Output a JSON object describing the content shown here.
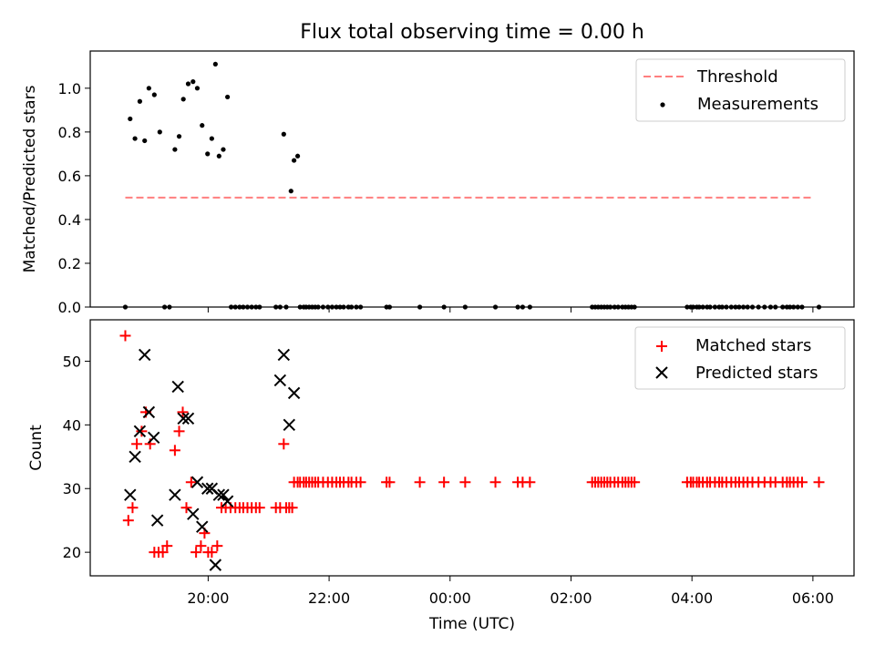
{
  "chart_data": {
    "title": "Flux total observing time = 0.00 h",
    "x_unit": "hours since 00:00 UTC",
    "xlabel": "Time (UTC)",
    "xticks": [
      {
        "value": -4,
        "label": "20:00"
      },
      {
        "value": -2,
        "label": "22:00"
      },
      {
        "value": 0,
        "label": "00:00"
      },
      {
        "value": 2,
        "label": "02:00"
      },
      {
        "value": 4,
        "label": "04:00"
      },
      {
        "value": 6,
        "label": "06:00"
      }
    ],
    "xlim": [
      -5.95,
      6.68
    ],
    "panels": [
      {
        "type": "scatter",
        "ylabel": "Matched/Predicted stars",
        "ylim": [
          0,
          1.17
        ],
        "yticks": [
          {
            "value": 0,
            "label": "0.0"
          },
          {
            "value": 0.2,
            "label": "0.2"
          },
          {
            "value": 0.4,
            "label": "0.4"
          },
          {
            "value": 0.6,
            "label": "0.6"
          },
          {
            "value": 0.8,
            "label": "0.8"
          },
          {
            "value": 1.0,
            "label": "1.0"
          }
        ],
        "legend": {
          "position": "top-right",
          "entries": [
            "Threshold",
            "Measurements"
          ]
        },
        "threshold": {
          "name": "Threshold",
          "color": "#ff7f7f",
          "style": "dashed",
          "x": [
            -5.37,
            6.02
          ],
          "y": 0.5
        },
        "measurements": {
          "name": "Measurements",
          "color": "#000000",
          "x": [
            -5.37,
            -5.29,
            -5.21,
            -5.13,
            -5.05,
            -4.98,
            -4.89,
            -4.8,
            -4.72,
            -4.64,
            -4.55,
            -4.48,
            -4.41,
            -4.33,
            -4.25,
            -4.18,
            -4.1,
            -4.01,
            -3.94,
            -3.88,
            -3.82,
            -3.75,
            -3.68,
            -3.62,
            -3.55,
            -3.48,
            -3.42,
            -3.35,
            -3.28,
            -3.21,
            -3.15,
            -2.88,
            -2.81,
            -2.75,
            -2.71,
            -2.63,
            -2.58,
            -2.52,
            -2.48,
            -2.42,
            -2.38,
            -2.33,
            -2.28,
            -2.23,
            -2.18,
            -2.1,
            -2.02,
            -1.95,
            -1.88,
            -1.82,
            -1.76,
            -1.68,
            -1.63,
            -1.55,
            -1.48,
            -1.05,
            -1.0,
            -0.5,
            -0.1,
            0.25,
            0.75,
            1.12,
            1.2,
            1.32,
            2.35,
            2.4,
            2.45,
            2.5,
            2.55,
            2.6,
            2.65,
            2.72,
            2.78,
            2.85,
            2.9,
            2.95,
            3.0,
            3.05,
            3.92,
            3.98,
            4.02,
            4.08,
            4.12,
            4.18,
            4.25,
            4.3,
            4.38,
            4.45,
            4.5,
            4.57,
            4.65,
            4.72,
            4.78,
            4.85,
            4.92,
            5.0,
            5.1,
            5.2,
            5.3,
            5.38,
            5.5,
            5.57,
            5.62,
            5.68,
            5.75,
            5.82,
            6.1
          ],
          "y": [
            0.0,
            0.86,
            0.77,
            0.94,
            0.76,
            1.0,
            0.97,
            0.8,
            0.0,
            0.0,
            0.72,
            0.78,
            0.95,
            1.02,
            1.03,
            1.0,
            0.83,
            0.7,
            0.77,
            1.11,
            0.69,
            0.72,
            0.96,
            0.0,
            0.0,
            0.0,
            0.0,
            0.0,
            0.0,
            0.0,
            0.0,
            0.0,
            0.0,
            0.79,
            0.0,
            0.53,
            0.67,
            0.69,
            0.0,
            0.0,
            0.0,
            0.0,
            0.0,
            0.0,
            0.0,
            0.0,
            0.0,
            0.0,
            0.0,
            0.0,
            0.0,
            0.0,
            0.0,
            0.0,
            0.0,
            0.0,
            0.0,
            0.0,
            0.0,
            0.0,
            0.0,
            0.0,
            0.0,
            0.0,
            0.0,
            0.0,
            0.0,
            0.0,
            0.0,
            0.0,
            0.0,
            0.0,
            0.0,
            0.0,
            0.0,
            0.0,
            0.0,
            0.0,
            0.0,
            0.0,
            0.0,
            0.0,
            0.0,
            0.0,
            0.0,
            0.0,
            0.0,
            0.0,
            0.0,
            0.0,
            0.0,
            0.0,
            0.0,
            0.0,
            0.0,
            0.0,
            0.0,
            0.0,
            0.0,
            0.0,
            0.0,
            0.0,
            0.0,
            0.0,
            0.0,
            0.0,
            0.0
          ]
        }
      },
      {
        "type": "scatter",
        "ylabel": "Count",
        "ylim": [
          16.3,
          56.5
        ],
        "yticks": [
          {
            "value": 20,
            "label": "20"
          },
          {
            "value": 30,
            "label": "30"
          },
          {
            "value": 40,
            "label": "40"
          },
          {
            "value": 50,
            "label": "50"
          }
        ],
        "legend": {
          "position": "top-right",
          "entries": [
            "Matched stars",
            "Predicted stars"
          ]
        },
        "series": [
          {
            "name": "Matched stars",
            "marker": "plus",
            "color": "#ff0000",
            "x": [
              -5.37,
              -5.32,
              -5.25,
              -5.18,
              -5.1,
              -5.03,
              -4.96,
              -4.89,
              -4.82,
              -4.75,
              -4.68,
              -4.55,
              -4.48,
              -4.42,
              -4.36,
              -4.28,
              -4.2,
              -4.12,
              -4.06,
              -4.0,
              -3.94,
              -3.85,
              -3.78,
              -3.71,
              -3.63,
              -3.55,
              -3.48,
              -3.42,
              -3.35,
              -3.28,
              -3.21,
              -3.15,
              -2.88,
              -2.81,
              -2.75,
              -2.71,
              -2.66,
              -2.61,
              -2.58,
              -2.52,
              -2.48,
              -2.42,
              -2.38,
              -2.33,
              -2.28,
              -2.23,
              -2.18,
              -2.1,
              -2.02,
              -1.95,
              -1.88,
              -1.82,
              -1.76,
              -1.68,
              -1.63,
              -1.55,
              -1.48,
              -1.05,
              -1.0,
              -0.5,
              -0.1,
              0.25,
              0.75,
              1.12,
              1.2,
              1.32,
              2.35,
              2.4,
              2.45,
              2.5,
              2.55,
              2.6,
              2.65,
              2.72,
              2.78,
              2.85,
              2.9,
              2.95,
              3.0,
              3.05,
              3.92,
              3.98,
              4.02,
              4.08,
              4.12,
              4.18,
              4.25,
              4.3,
              4.38,
              4.45,
              4.5,
              4.57,
              4.65,
              4.72,
              4.78,
              4.85,
              4.92,
              5.0,
              5.1,
              5.2,
              5.3,
              5.38,
              5.5,
              5.57,
              5.62,
              5.68,
              5.75,
              5.82,
              6.1
            ],
            "y": [
              54,
              25,
              27,
              37,
              39,
              42,
              37,
              20,
              20,
              20,
              21,
              36,
              39,
              42,
              27,
              31,
              20,
              21,
              23,
              20,
              20,
              21,
              27,
              27,
              27,
              27,
              27,
              27,
              27,
              27,
              27,
              27,
              27,
              27,
              37,
              27,
              27,
              27,
              31,
              31,
              31,
              31,
              31,
              31,
              31,
              31,
              31,
              31,
              31,
              31,
              31,
              31,
              31,
              31,
              31,
              31,
              31,
              31,
              31,
              31,
              31,
              31,
              31,
              31,
              31,
              31,
              31,
              31,
              31,
              31,
              31,
              31,
              31,
              31,
              31,
              31,
              31,
              31,
              31,
              31,
              31,
              31,
              31,
              31,
              31,
              31,
              31,
              31,
              31,
              31,
              31,
              31,
              31,
              31,
              31,
              31,
              31,
              31,
              31,
              31,
              31,
              31,
              31,
              31,
              31,
              31,
              31,
              31,
              31
            ]
          },
          {
            "name": "Predicted stars",
            "marker": "x",
            "color": "#000000",
            "x": [
              -5.29,
              -5.21,
              -5.13,
              -5.05,
              -4.98,
              -4.9,
              -4.84,
              -4.55,
              -4.5,
              -4.41,
              -4.33,
              -4.25,
              -4.18,
              -4.1,
              -4.01,
              -3.94,
              -3.88,
              -3.82,
              -3.75,
              -3.68,
              -2.81,
              -2.75,
              -2.66,
              -2.58
            ],
            "y": [
              29,
              35,
              39,
              51,
              42,
              38,
              25,
              29,
              46,
              41,
              41,
              26,
              31,
              24,
              30,
              30,
              18,
              29,
              29,
              28,
              47,
              51,
              40,
              45
            ]
          }
        ]
      }
    ]
  }
}
